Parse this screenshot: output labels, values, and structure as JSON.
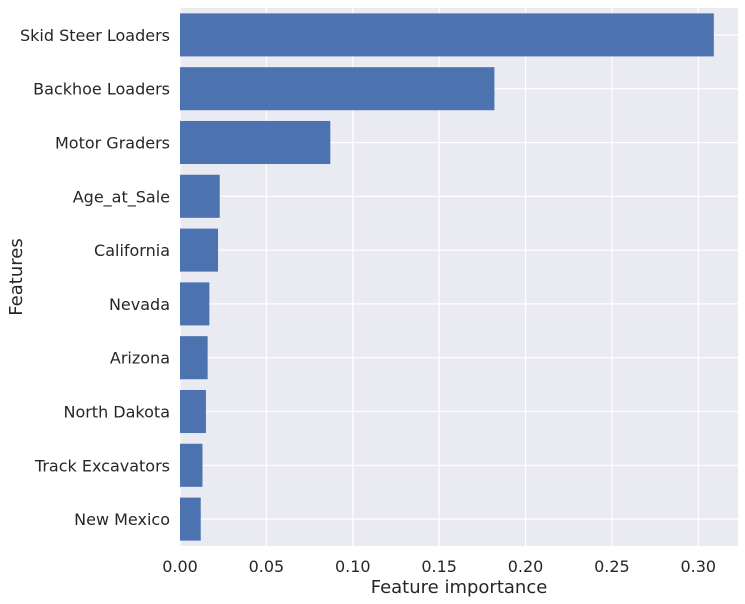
{
  "chart_data": {
    "type": "bar",
    "orientation": "horizontal",
    "categories": [
      "Skid Steer Loaders",
      "Backhoe Loaders",
      "Motor Graders",
      "Age_at_Sale",
      "California",
      "Nevada",
      "Arizona",
      "North Dakota",
      "Track Excavators",
      "New Mexico"
    ],
    "values": [
      0.309,
      0.182,
      0.087,
      0.023,
      0.022,
      0.017,
      0.016,
      0.015,
      0.013,
      0.012
    ],
    "title": "",
    "xlabel": "Feature importance",
    "ylabel": "Features",
    "xlim": [
      0,
      0.323
    ],
    "xticks": [
      0.0,
      0.05,
      0.1,
      0.15,
      0.2,
      0.25,
      0.3
    ],
    "xtick_labels": [
      "0.00",
      "0.05",
      "0.10",
      "0.15",
      "0.20",
      "0.25",
      "0.30"
    ],
    "grid": true,
    "legend": "none",
    "colors": {
      "bar": "#4c72b0",
      "background": "#eaeaf2",
      "grid": "#ffffff",
      "text": "#262626"
    }
  }
}
